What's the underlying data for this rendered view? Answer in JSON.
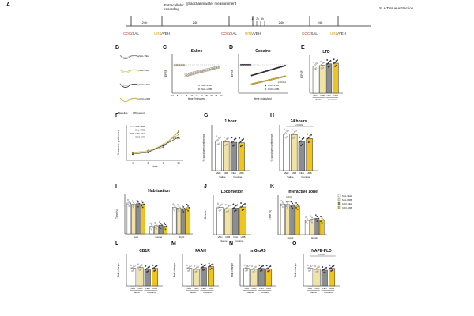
{
  "panel_letters": [
    "A",
    "B",
    "C",
    "D",
    "E",
    "F",
    "G",
    "H",
    "I",
    "J",
    "K",
    "L",
    "M",
    "N",
    "O"
  ],
  "timeline": {
    "label_extracellular": "Extracellular",
    "label_recording": "recording",
    "label_sucrose": "Saccharin/water measurement",
    "treat1": {
      "coc": "COC",
      "sal": "SAL"
    },
    "treat2": {
      "urb": "URB",
      "veh": "VEH"
    },
    "d24": "24h",
    "d1h": "1h",
    "d2h": "2h",
    "d4h": "4h",
    "d24b": "24h",
    "d24c": "24h",
    "si": "SI + Tissue extraction",
    "marks": [
      "1h",
      "2h",
      "4h"
    ]
  },
  "colors": {
    "sal_veh": "#ffffff",
    "sal_urb": "#f1e3a6",
    "coc_veh": "#8b8d8f",
    "coc_urb": "#f0c419",
    "coc_red": "#c0392b",
    "urb_text": "#d4a017",
    "line": "#222222"
  },
  "panelC": {
    "title": "Saline",
    "ylabel": "fEPSP",
    "xlabel": "time (minutes)",
    "legend": [
      "SAL-VEH",
      "SAL-URB"
    ],
    "ticks": [
      "-10",
      "-5",
      "0",
      "5",
      "10",
      "15",
      "20",
      "25",
      "30",
      "35",
      "40"
    ]
  },
  "panelD": {
    "title": "Cocaine",
    "ylabel": "fEPSP",
    "xlabel": "time (minutes)",
    "legend": [
      "COC-VEH",
      "COC-URB"
    ],
    "pval": "p=0.012"
  },
  "panelE": {
    "title": "LTD",
    "ylabel": "fEPSP",
    "groups": [
      "VEH",
      "URB",
      "VEH",
      "URB"
    ],
    "xgroups": [
      "Saline",
      "Cocaine"
    ],
    "values": [
      0.86,
      0.88,
      0.93,
      0.95
    ]
  },
  "panelF": {
    "ylabel": "% sucrose preference",
    "xlabel": "Hour",
    "ticks": [
      "1",
      "2",
      "4",
      "24"
    ],
    "legend": [
      "SAL-VEH",
      "SAL-URB",
      "COC-VEH",
      "COC-URB"
    ],
    "annot": "p<0.001",
    "series": [
      {
        "name": "SAL-VEH",
        "values": [
          48,
          50,
          55,
          72
        ]
      },
      {
        "name": "SAL-URB",
        "values": [
          49,
          51,
          56,
          73
        ]
      },
      {
        "name": "COC-VEH",
        "values": [
          47,
          49,
          57,
          66
        ]
      },
      {
        "name": "COC-URB",
        "values": [
          48,
          50,
          58,
          69
        ]
      }
    ]
  },
  "panelG": {
    "title": "1 hour",
    "ylabel": "% saccharin preference",
    "groups": [
      "VEH",
      "URB",
      "VEH",
      "URB"
    ],
    "xgroups": [
      "Saline",
      "Cocaine"
    ],
    "values": [
      65,
      63,
      62,
      61
    ]
  },
  "panelH": {
    "title": "24 hours",
    "ylabel": "% saccharin preference",
    "groups": [
      "VEH",
      "URB",
      "VEH",
      "URB"
    ],
    "xgroups": [
      "Saline",
      "Cocaine"
    ],
    "values": [
      80,
      79,
      63,
      70
    ],
    "annot": "p<0.001"
  },
  "panelI": {
    "title": "Habituation",
    "ylabel": "Time (s)",
    "xgroups": [
      "Left",
      "Center",
      "Right"
    ],
    "values": [
      [
        250,
        240,
        245,
        240
      ],
      [
        60,
        65,
        70,
        62
      ],
      [
        215,
        210,
        205,
        212
      ]
    ]
  },
  "panelJ": {
    "title": "Locomotion",
    "ylabel": "Counts",
    "groups": [
      "VEH",
      "URB",
      "VEH",
      "URB"
    ],
    "xgroups": [
      "Saline",
      "Cocaine"
    ],
    "values": [
      2400,
      2300,
      2350,
      2450
    ]
  },
  "panelK": {
    "title": "Interactive zone",
    "ylabel": "Time (s)",
    "xgroups": [
      "Novel",
      "Empty"
    ],
    "values": [
      [
        280,
        275,
        270,
        260
      ],
      [
        130,
        140,
        150,
        135
      ]
    ],
    "legend": [
      "SAL-VEH",
      "SAL-URB",
      "COC-VEH",
      "COC-URB"
    ],
    "annots": [
      "p<0.01",
      "p<0.01"
    ]
  },
  "panelL": {
    "title": "CB1R",
    "ylabel": "Fold change",
    "groups": [
      "VEH",
      "URB",
      "VEH",
      "URB"
    ],
    "xgroups": [
      "Saline",
      "Cocaine"
    ],
    "values": [
      1.0,
      1.05,
      0.95,
      1.0
    ]
  },
  "panelM": {
    "title": "FAAH",
    "ylabel": "Fold change",
    "groups": [
      "VEH",
      "URB",
      "VEH",
      "URB"
    ],
    "xgroups": [
      "Saline",
      "Cocaine"
    ],
    "values": [
      1.0,
      0.95,
      1.05,
      1.1
    ]
  },
  "panelN": {
    "title": "mGluR5",
    "ylabel": "Fold change",
    "groups": [
      "VEH",
      "URB",
      "VEH",
      "URB"
    ],
    "xgroups": [
      "Saline",
      "Cocaine"
    ],
    "values": [
      1.0,
      0.95,
      1.0,
      0.98
    ]
  },
  "panelO": {
    "title": "NAPE-PLD",
    "ylabel": "Fold change",
    "groups": [
      "VEH",
      "URB",
      "VEH",
      "URB"
    ],
    "xgroups": [
      "Saline",
      "Cocaine"
    ],
    "values": [
      1.0,
      0.95,
      0.9,
      1.0
    ],
    "annot": "p<0.001"
  },
  "panelB": {
    "labels": [
      "SAL-VEH",
      "SAL-URB",
      "COC-VEH",
      "COC-URB"
    ],
    "foot": [
      "Baseline",
      "LTD period"
    ]
  }
}
